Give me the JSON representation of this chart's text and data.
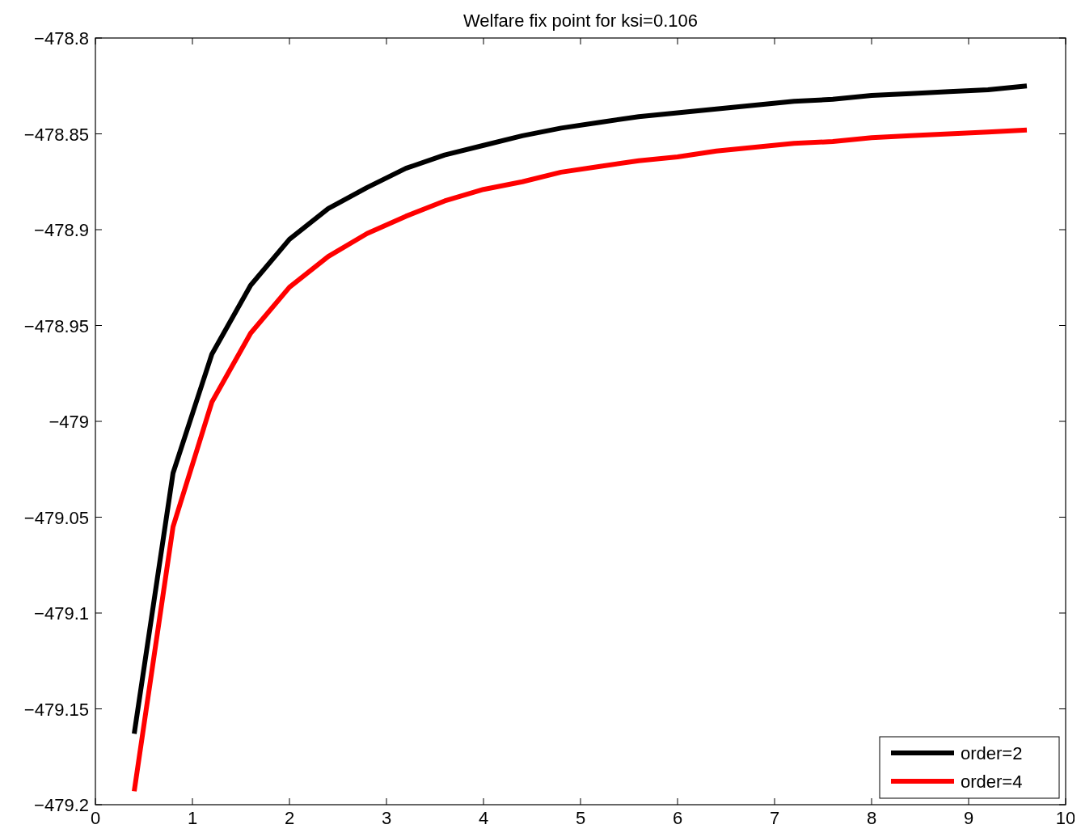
{
  "chart_data": {
    "type": "line",
    "title": "Welfare fix point for ksi=0.106",
    "x": [
      0.4,
      0.8,
      1.2,
      1.6,
      2.0,
      2.4,
      2.8,
      3.2,
      3.6,
      4.0,
      4.4,
      4.8,
      5.2,
      5.6,
      6.0,
      6.4,
      6.8,
      7.2,
      7.6,
      8.0,
      8.4,
      8.8,
      9.2,
      9.6
    ],
    "series": [
      {
        "name": "order=2",
        "color": "#000000",
        "values": [
          -479.163,
          -479.027,
          -478.965,
          -478.929,
          -478.905,
          -478.889,
          -478.878,
          -478.868,
          -478.861,
          -478.856,
          -478.851,
          -478.847,
          -478.844,
          -478.841,
          -478.839,
          -478.837,
          -478.835,
          -478.833,
          -478.832,
          -478.83,
          -478.829,
          -478.828,
          -478.827,
          -478.825
        ]
      },
      {
        "name": "order=4",
        "color": "#ff0000",
        "values": [
          -479.193,
          -479.055,
          -478.99,
          -478.954,
          -478.93,
          -478.914,
          -478.902,
          -478.893,
          -478.885,
          -478.879,
          -478.875,
          -478.87,
          -478.867,
          -478.864,
          -478.862,
          -478.859,
          -478.857,
          -478.855,
          -478.854,
          -478.852,
          -478.851,
          -478.85,
          -478.849,
          -478.848
        ]
      }
    ],
    "xlim": [
      0,
      10
    ],
    "xticks": [
      0,
      1,
      2,
      3,
      4,
      5,
      6,
      7,
      8,
      9,
      10
    ],
    "ylim": [
      -479.2,
      -478.8
    ],
    "yticks": [
      {
        "value": -479.2,
        "label": "−479.2"
      },
      {
        "value": -479.15,
        "label": "−479.15"
      },
      {
        "value": -479.1,
        "label": "−479.1"
      },
      {
        "value": -479.05,
        "label": "−479.05"
      },
      {
        "value": -479,
        "label": "−479"
      },
      {
        "value": -478.95,
        "label": "−478.95"
      },
      {
        "value": -478.9,
        "label": "−478.9"
      },
      {
        "value": -478.85,
        "label": "−478.85"
      },
      {
        "value": -478.8,
        "label": "−478.8"
      }
    ],
    "grid": false,
    "legend": "bottom right",
    "marker": "none",
    "line_style": "solid"
  }
}
